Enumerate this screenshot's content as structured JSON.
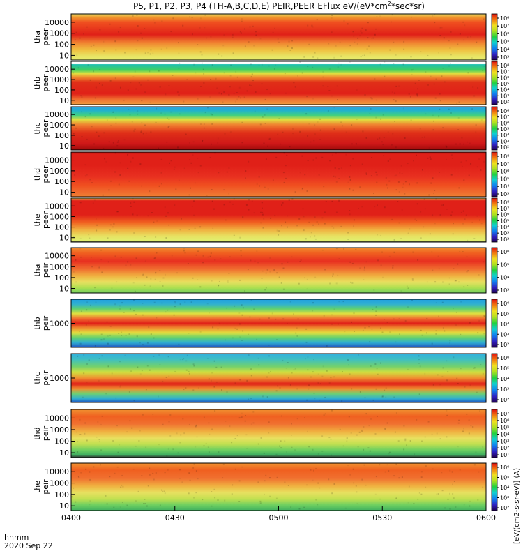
{
  "title": "P5, P1, P2, P3, P4 (TH-A,B,C,D,E) PEIR,PEER EFlux eV/(eV*cm",
  "title_sup": "2",
  "title_tail": "*sec*sr)",
  "footer": {
    "hhmm": "hhmm",
    "date": "2020 Sep 22"
  },
  "colorbar_unit_label": "[eV/(cm2-s-sr-eV)] (A)",
  "chart_data": {
    "type": "heatmap",
    "x_ticks": [
      "0400",
      "0430",
      "0500",
      "0530",
      "0600"
    ],
    "x_range": [
      "04:00",
      "06:00"
    ],
    "colormap": "rainbow (purple-blue-cyan-green-yellow-red)",
    "panels": [
      {
        "id": "tha-peer",
        "label_top": "tha",
        "label_bottom": "peer",
        "y_ticks": [
          "10000",
          "1000",
          "100",
          "10"
        ],
        "cbar_ticks": [
          "10⁸",
          "10⁷",
          "10⁶",
          "10⁵",
          "10⁴",
          "10³"
        ],
        "profile": [
          [
            0,
            "#e8e070"
          ],
          [
            0.06,
            "#f0a030"
          ],
          [
            0.18,
            "#f05020"
          ],
          [
            0.45,
            "#e02018"
          ],
          [
            0.62,
            "#f08030"
          ],
          [
            0.78,
            "#f0c040"
          ],
          [
            0.9,
            "#e8e060"
          ],
          [
            1,
            "#e8f070"
          ]
        ]
      },
      {
        "id": "thb-peer",
        "label_top": "thb",
        "label_bottom": "peer",
        "y_ticks": [
          "10000",
          "1000",
          "100",
          "10"
        ],
        "cbar_ticks": [
          "10⁸",
          "10⁷",
          "10⁶",
          "10⁵",
          "10⁴",
          "10³",
          "10²"
        ],
        "profile": [
          [
            0,
            "#ffffff"
          ],
          [
            0.06,
            "#ffffff"
          ],
          [
            0.07,
            "#20c0b0"
          ],
          [
            0.2,
            "#40d060"
          ],
          [
            0.28,
            "#e0e040"
          ],
          [
            0.36,
            "#f09030"
          ],
          [
            0.48,
            "#e03018"
          ],
          [
            0.75,
            "#e02018"
          ],
          [
            0.88,
            "#f07030"
          ],
          [
            1,
            "#f0a040"
          ]
        ]
      },
      {
        "id": "thc-peer",
        "label_top": "thc",
        "label_bottom": "peer",
        "y_ticks": [
          "10000",
          "1000",
          "100",
          "10"
        ],
        "cbar_ticks": [
          "10⁸",
          "10⁷",
          "10⁶",
          "10⁵",
          "10⁴",
          "10³",
          "10²"
        ],
        "profile": [
          [
            0,
            "#30a0e0"
          ],
          [
            0.08,
            "#20b0d0"
          ],
          [
            0.2,
            "#40d080"
          ],
          [
            0.3,
            "#e0e040"
          ],
          [
            0.42,
            "#f08030"
          ],
          [
            0.6,
            "#e03018"
          ],
          [
            0.85,
            "#d01818"
          ],
          [
            0.95,
            "#b01010"
          ],
          [
            1,
            "#900808"
          ]
        ]
      },
      {
        "id": "thd-peer",
        "label_top": "thd",
        "label_bottom": "peer",
        "y_ticks": [
          "10000",
          "1000",
          "100",
          "10"
        ],
        "cbar_ticks": [
          "10⁸",
          "10⁷",
          "10⁶",
          "10⁵",
          "10⁴",
          "10³"
        ],
        "profile": [
          [
            0,
            "#b01010"
          ],
          [
            0.05,
            "#e02018"
          ],
          [
            0.3,
            "#e02018"
          ],
          [
            0.55,
            "#e83020"
          ],
          [
            0.75,
            "#f05020"
          ],
          [
            0.92,
            "#f07030"
          ],
          [
            1,
            "#f08030"
          ]
        ]
      },
      {
        "id": "the-peer",
        "label_top": "the",
        "label_bottom": "peer",
        "y_ticks": [
          "10000",
          "1000",
          "100",
          "10"
        ],
        "cbar_ticks": [
          "10⁸",
          "10⁷",
          "10⁶",
          "10⁵",
          "10⁴",
          "10³",
          "10²"
        ],
        "profile": [
          [
            0,
            "#e8e060"
          ],
          [
            0.06,
            "#e02018"
          ],
          [
            0.38,
            "#e02018"
          ],
          [
            0.55,
            "#f06020"
          ],
          [
            0.72,
            "#f0b040"
          ],
          [
            0.86,
            "#e8e060"
          ],
          [
            0.97,
            "#e0f070"
          ],
          [
            1,
            "#303030"
          ]
        ]
      },
      {
        "id": "tha-peir",
        "label_top": "tha",
        "label_bottom": "peir",
        "y_ticks": [
          "10000",
          "1000",
          "100",
          "10"
        ],
        "cbar_ticks": [
          "10⁶",
          "10⁵",
          "10⁴",
          "10³"
        ],
        "profile": [
          [
            0,
            "#f09030"
          ],
          [
            0.12,
            "#f06020"
          ],
          [
            0.3,
            "#e83020"
          ],
          [
            0.48,
            "#f07030"
          ],
          [
            0.62,
            "#f0b040"
          ],
          [
            0.76,
            "#e8e060"
          ],
          [
            0.88,
            "#b0e050"
          ],
          [
            1,
            "#70d060"
          ]
        ]
      },
      {
        "id": "thb-peir",
        "label_top": "thb",
        "label_bottom": "peir",
        "y_ticks": [
          "1000"
        ],
        "cbar_ticks": [
          "10⁶",
          "10⁵",
          "10⁴",
          "10³",
          "10²"
        ],
        "profile": [
          [
            0,
            "#20a0e0"
          ],
          [
            0.1,
            "#30b0d0"
          ],
          [
            0.2,
            "#60d070"
          ],
          [
            0.3,
            "#e0e040"
          ],
          [
            0.4,
            "#f07030"
          ],
          [
            0.5,
            "#e02018"
          ],
          [
            0.6,
            "#f09030"
          ],
          [
            0.7,
            "#e0e040"
          ],
          [
            0.8,
            "#60d070"
          ],
          [
            0.9,
            "#30b0d0"
          ],
          [
            1,
            "#2050c0"
          ]
        ]
      },
      {
        "id": "thc-peir",
        "label_top": "thc",
        "label_bottom": "peir",
        "y_ticks": [
          "1000"
        ],
        "cbar_ticks": [
          "10⁶",
          "10⁵",
          "10⁴",
          "10³",
          "10²"
        ],
        "profile": [
          [
            0,
            "#30b0e0"
          ],
          [
            0.12,
            "#40c0c0"
          ],
          [
            0.26,
            "#70d070"
          ],
          [
            0.38,
            "#d0e040"
          ],
          [
            0.5,
            "#f09030"
          ],
          [
            0.62,
            "#e02018"
          ],
          [
            0.72,
            "#f09030"
          ],
          [
            0.82,
            "#70d070"
          ],
          [
            0.92,
            "#30b0d0"
          ],
          [
            1,
            "#2050c0"
          ]
        ]
      },
      {
        "id": "thd-peir",
        "label_top": "thd",
        "label_bottom": "peir",
        "y_ticks": [
          "10000",
          "1000",
          "100",
          "10"
        ],
        "cbar_ticks": [
          "10⁷",
          "10⁶",
          "10⁵",
          "10⁴",
          "10³",
          "10²",
          "10¹"
        ],
        "profile": [
          [
            0,
            "#f09030"
          ],
          [
            0.15,
            "#f06020"
          ],
          [
            0.3,
            "#f07030"
          ],
          [
            0.46,
            "#f0b040"
          ],
          [
            0.6,
            "#e8e060"
          ],
          [
            0.72,
            "#c0e050"
          ],
          [
            0.84,
            "#70d060"
          ],
          [
            0.94,
            "#40b060"
          ],
          [
            1,
            "#303030"
          ]
        ]
      },
      {
        "id": "the-peir",
        "label_top": "the",
        "label_bottom": "peir",
        "y_ticks": [
          "10000",
          "1000",
          "100",
          "10"
        ],
        "cbar_ticks": [
          "10⁶",
          "10⁵",
          "10⁴",
          "10³",
          "10²"
        ],
        "profile": [
          [
            0,
            "#f09030"
          ],
          [
            0.15,
            "#f06020"
          ],
          [
            0.32,
            "#f07030"
          ],
          [
            0.48,
            "#f0b040"
          ],
          [
            0.62,
            "#e8e060"
          ],
          [
            0.76,
            "#c0e050"
          ],
          [
            0.88,
            "#70d060"
          ],
          [
            1,
            "#40b060"
          ]
        ]
      }
    ]
  }
}
